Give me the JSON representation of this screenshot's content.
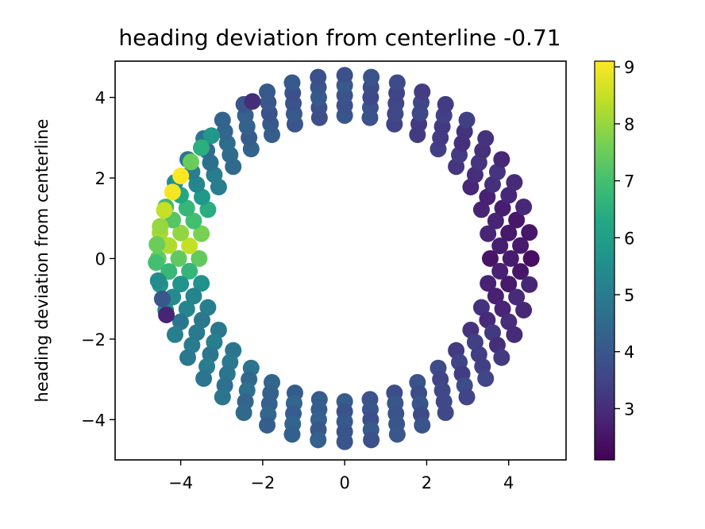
{
  "chart_data": {
    "type": "scatter",
    "title": "heading deviation from centerline -0.71",
    "xlabel": "",
    "ylabel": "heading deviation from centerline",
    "xlim": [
      -5.6,
      5.4
    ],
    "ylim": [
      -5.0,
      4.9
    ],
    "xticks": [
      -4,
      -2,
      0,
      2,
      4
    ],
    "yticks": [
      -4,
      -2,
      0,
      2,
      4
    ],
    "xtick_labels": [
      "−4",
      "−2",
      "0",
      "2",
      "4"
    ],
    "ytick_labels": [
      "−4",
      "−2",
      "0",
      "2",
      "4"
    ],
    "grid": false,
    "colormap": "viridis",
    "colorbar": {
      "min": 2.1,
      "max": 9.1,
      "ticks": [
        3,
        4,
        5,
        6,
        7,
        8,
        9
      ],
      "tick_labels": [
        "3",
        "4",
        "5",
        "6",
        "7",
        "8",
        "9"
      ]
    },
    "rings": [
      {
        "radius": 3.55,
        "n_points": 36
      },
      {
        "radius": 3.8,
        "n_points": 38
      },
      {
        "radius": 4.05,
        "n_points": 40
      },
      {
        "radius": 4.3,
        "n_points": 42
      },
      {
        "radius": 4.55,
        "n_points": 44
      }
    ],
    "color_model": {
      "description": "color value as a function of polar angle (degrees) around the ring; low on the right, high on the left",
      "angle_deg": [
        0,
        30,
        60,
        90,
        120,
        150,
        165,
        175,
        180,
        190,
        200,
        215,
        240,
        270,
        300,
        330,
        360
      ],
      "value": [
        2.5,
        3.0,
        3.4,
        3.9,
        4.0,
        5.0,
        7.0,
        8.5,
        7.5,
        5.5,
        5.0,
        5.0,
        4.4,
        4.0,
        3.8,
        3.2,
        2.5
      ]
    },
    "special_points": [
      {
        "x": -2.25,
        "y": 3.9,
        "value": 3.0
      },
      {
        "x": -3.25,
        "y": 3.05,
        "value": 5.8
      },
      {
        "x": -3.5,
        "y": 2.75,
        "value": 6.5
      },
      {
        "x": -3.75,
        "y": 2.4,
        "value": 7.5
      },
      {
        "x": -4.0,
        "y": 2.05,
        "value": 9.1
      },
      {
        "x": -4.2,
        "y": 1.65,
        "value": 9.0
      },
      {
        "x": -4.4,
        "y": 1.2,
        "value": 8.5
      },
      {
        "x": -4.5,
        "y": 0.8,
        "value": 8.0
      },
      {
        "x": -4.58,
        "y": 0.35,
        "value": 7.5
      },
      {
        "x": -4.6,
        "y": -0.1,
        "value": 7.0
      },
      {
        "x": -4.55,
        "y": -0.55,
        "value": 5.5
      },
      {
        "x": -4.45,
        "y": -1.0,
        "value": 4.0
      },
      {
        "x": -4.35,
        "y": -1.4,
        "value": 2.8
      }
    ]
  }
}
